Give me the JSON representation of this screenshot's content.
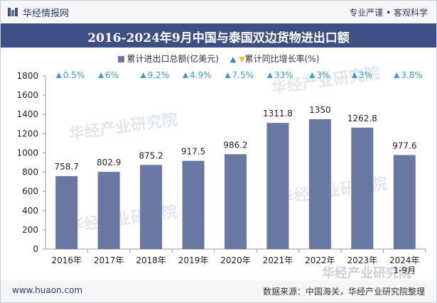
{
  "header": {
    "brand": "华经情报网",
    "slogan": "专业严谨 • 客观科学"
  },
  "footer": {
    "site": "www.huaon.com",
    "source": "数据来源：中国海关，华经产业研究院整理"
  },
  "watermark": {
    "text": "华经产业研究院",
    "url": "www.huaon.com"
  },
  "colors": {
    "bar": "#6878a3",
    "growth": "#3e9ad6",
    "header_bg": "#3e4f86"
  },
  "chart_data": {
    "type": "bar",
    "title": "2016-2024年9月中国与泰国双边货物进出口额",
    "legend": {
      "bar_label": "累计进出口总额(亿美元)",
      "growth_label": "累计同比增长率(%)",
      "placement": "top-center"
    },
    "categories": [
      "2016年",
      "2017年",
      "2018年",
      "2019年",
      "2020年",
      "2021年",
      "2022年",
      "2023年",
      "2024年\n1-9月"
    ],
    "series": [
      {
        "name": "累计进出口总额(亿美元)",
        "values": [
          758.7,
          802.9,
          875.2,
          917.5,
          986.2,
          1311.8,
          1350,
          1262.8,
          977.6
        ],
        "labels": [
          "758.7",
          "802.9",
          "875.2",
          "917.5",
          "986.2",
          "1311.8",
          "1350",
          "1262.8",
          "977.6"
        ]
      },
      {
        "name": "累计同比增长率(%)",
        "values": [
          0.5,
          6,
          9.2,
          4.9,
          7.5,
          33,
          3,
          3,
          3.8
        ],
        "labels": [
          "0.5%",
          "6%",
          "9.2%",
          "4.9%",
          "7.5%",
          "33%",
          "3%",
          "3%",
          "3.8%"
        ]
      }
    ],
    "ylim": [
      0,
      1800
    ],
    "yticks": [
      "0",
      "200",
      "400",
      "600",
      "800",
      "1000",
      "1200",
      "1400",
      "1600",
      "1800"
    ],
    "grid": false
  }
}
